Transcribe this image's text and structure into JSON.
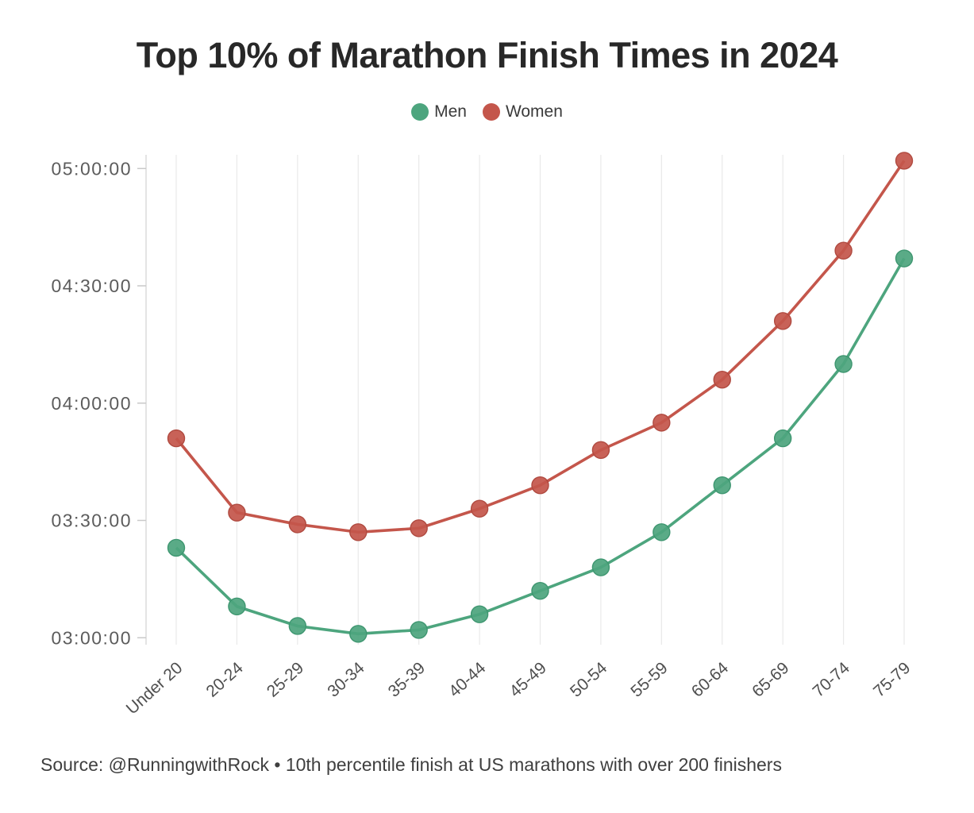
{
  "title": "Top 10% of Marathon Finish Times in 2024",
  "legend": [
    {
      "label": "Men",
      "color": "#4DA57E"
    },
    {
      "label": "Women",
      "color": "#C4564B"
    }
  ],
  "source_note": "Source: @RunningwithRock • 10th percentile finish at US marathons with over 200 finishers",
  "colors": {
    "men_series": "#4DA57E",
    "men_dot_stroke": "#3E9670",
    "women_series": "#C4564B",
    "women_dot_stroke": "#B04A40",
    "gridline": "#e9e9e9",
    "axis_line": "#dcdcdc",
    "tick_mark": "#c9c9c9",
    "title_text": "#282828",
    "axis_text": "#5c5c5c",
    "source_text": "#3f3f3f"
  },
  "chart_data": {
    "type": "line",
    "title": "Top 10% of Marathon Finish Times in 2024",
    "xlabel": "",
    "ylabel": "",
    "categories": [
      "Under 20",
      "20-24",
      "25-29",
      "30-34",
      "35-39",
      "40-44",
      "45-49",
      "50-54",
      "55-59",
      "60-64",
      "65-69",
      "70-74",
      "75-79"
    ],
    "series": [
      {
        "name": "Men",
        "color": "#4DA57E",
        "dot_stroke": "#3E9670",
        "values": [
          "03:23:00",
          "03:08:00",
          "03:03:00",
          "03:01:00",
          "03:02:00",
          "03:06:00",
          "03:12:00",
          "03:18:00",
          "03:27:00",
          "03:39:00",
          "03:51:00",
          "04:10:00",
          "04:37:00"
        ]
      },
      {
        "name": "Women",
        "color": "#C4564B",
        "dot_stroke": "#B04A40",
        "values": [
          "03:51:00",
          "03:32:00",
          "03:29:00",
          "03:27:00",
          "03:28:00",
          "03:33:00",
          "03:39:00",
          "03:48:00",
          "03:55:00",
          "04:06:00",
          "04:21:00",
          "04:39:00",
          "05:02:00"
        ]
      }
    ],
    "y_ticks": [
      "03:00:00",
      "03:30:00",
      "04:00:00",
      "04:30:00",
      "05:00:00"
    ],
    "ylim": [
      "02:58:00",
      "05:03:30"
    ],
    "grid": "vertical-only",
    "legend_position": "top-center",
    "x_label_rotation": -42
  }
}
